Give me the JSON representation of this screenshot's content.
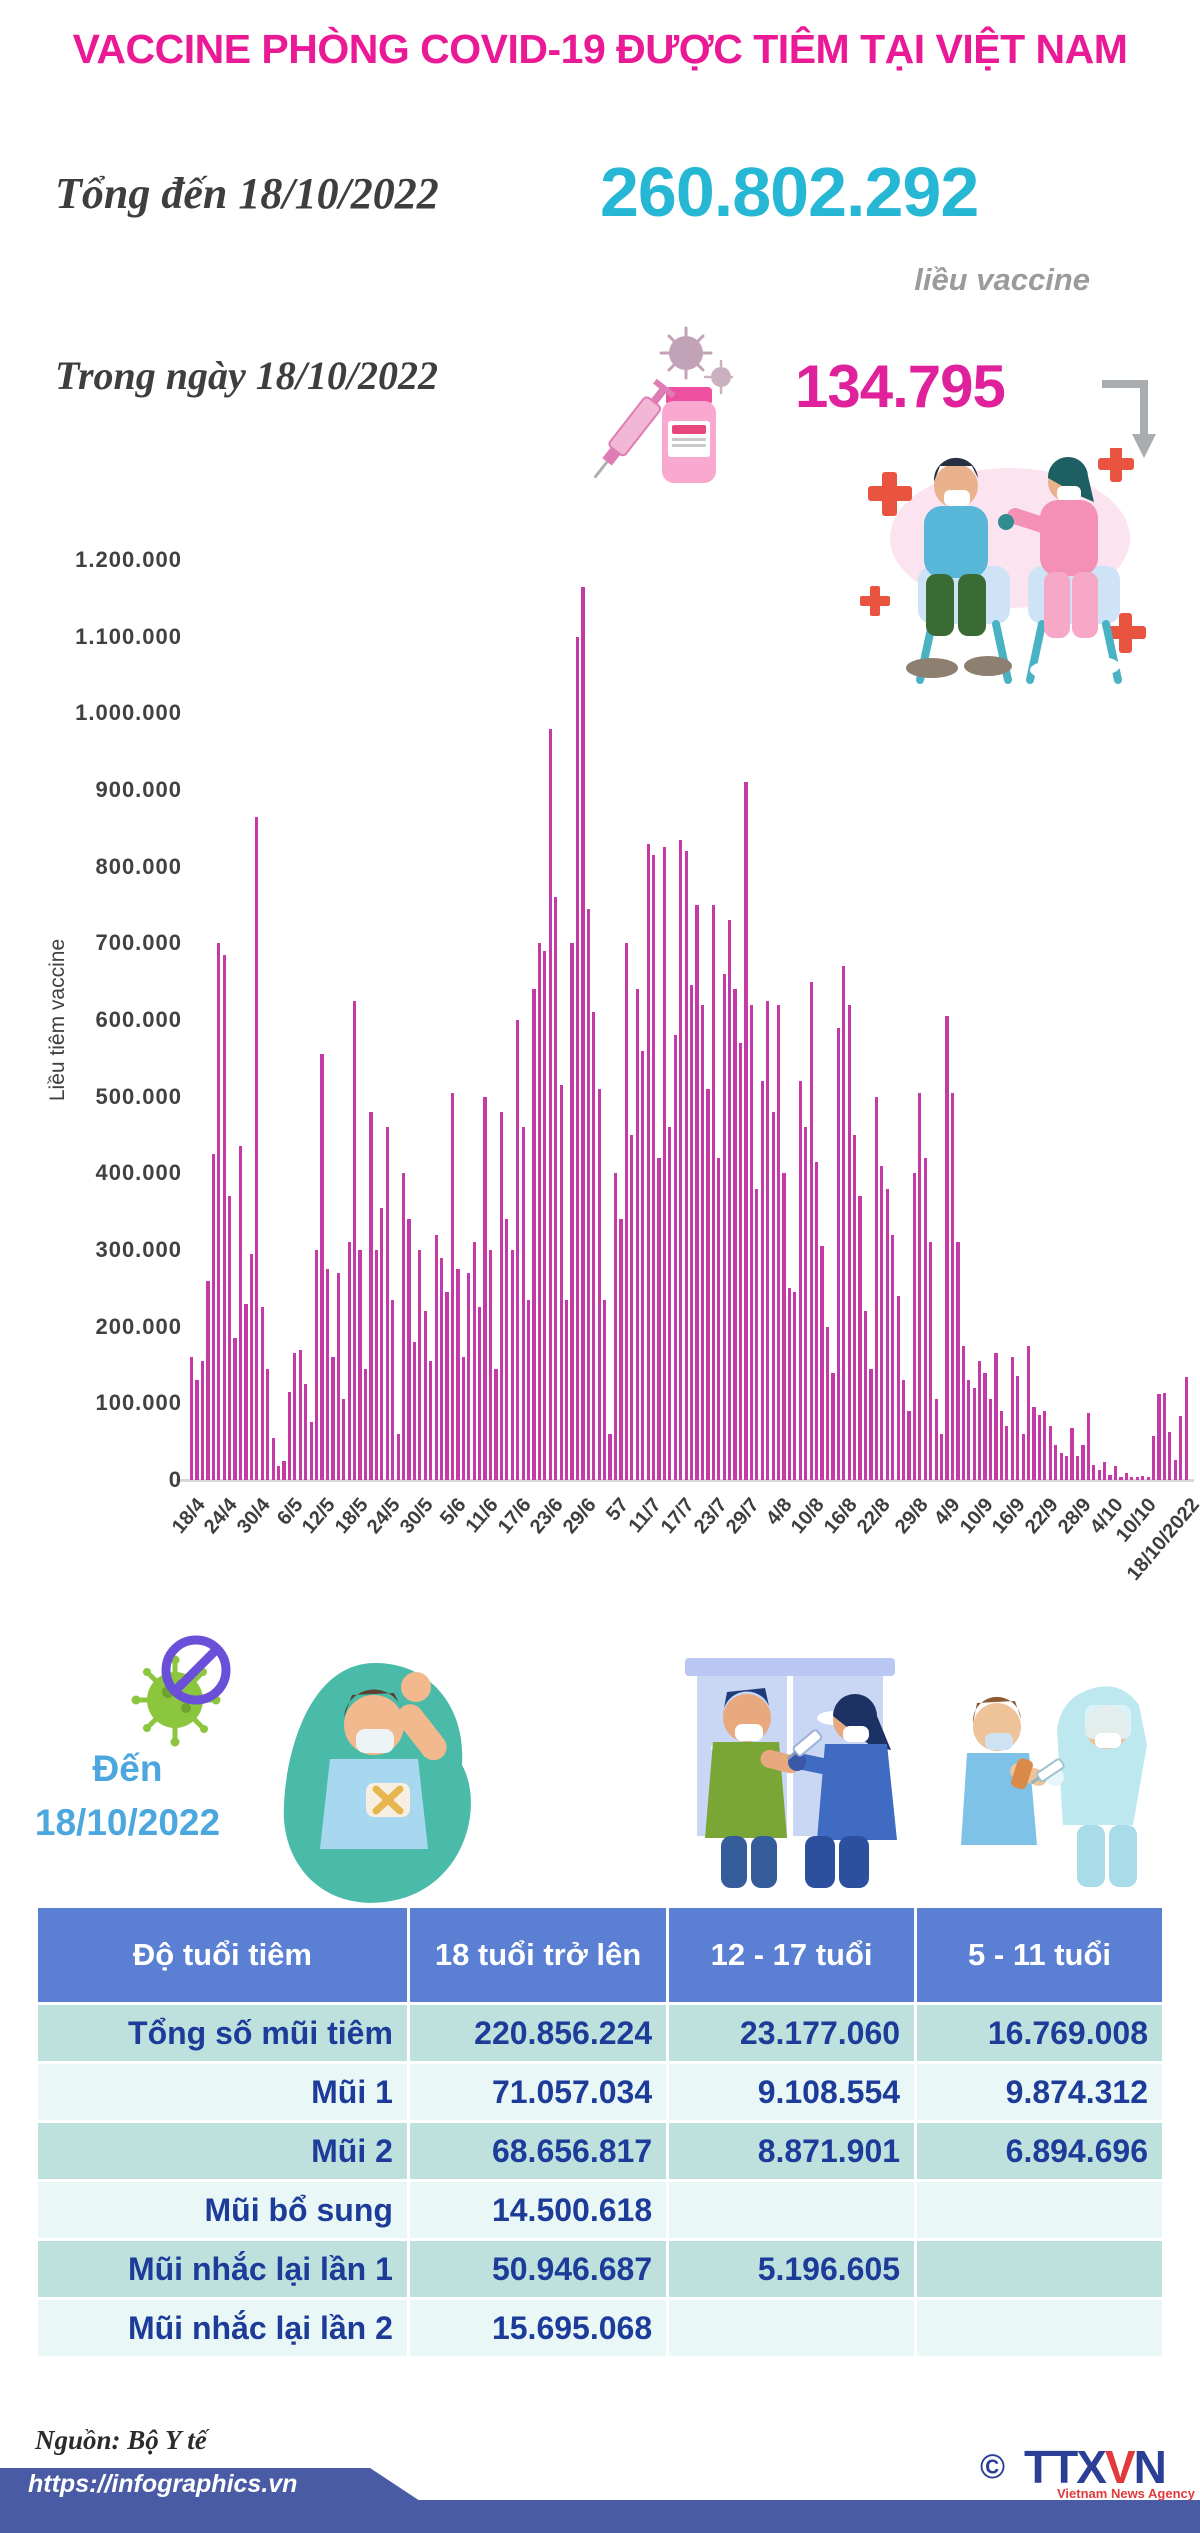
{
  "page": {
    "title": "VACCINE PHÒNG COVID-19 ĐƯỢC TIÊM TẠI VIỆT NAM"
  },
  "totals": {
    "total_label": "Tổng đến 18/10/2022",
    "total_value": "260.802.292",
    "total_unit": "liều vaccine",
    "daily_label": "Trong ngày 18/10/2022",
    "daily_value": "134.795"
  },
  "chart_data": {
    "type": "bar",
    "title": "",
    "xlabel": "",
    "ylabel": "Liều tiêm vaccine",
    "ylim": [
      0,
      1200000
    ],
    "ytick_step": 100000,
    "grid": false,
    "legend": "none",
    "bar_color": "#c43ba5",
    "x_labels": [
      "18/4",
      "24/4",
      "30/4",
      "6/5",
      "12/5",
      "18/5",
      "24/5",
      "30/5",
      "5/6",
      "11/6",
      "17/6",
      "23/6",
      "29/6",
      "57",
      "11/7",
      "17/7",
      "23/7",
      "29/7",
      "4/8",
      "10/8",
      "16/8",
      "22/8",
      "29/8",
      "4/9",
      "10/9",
      "16/9",
      "22/9",
      "28/9",
      "4/10",
      "10/10",
      "18/10/2022"
    ],
    "x_label_indices": [
      0,
      6,
      12,
      18,
      24,
      30,
      36,
      42,
      48,
      54,
      60,
      66,
      72,
      78,
      84,
      90,
      96,
      102,
      108,
      114,
      120,
      126,
      133,
      139,
      145,
      151,
      157,
      163,
      169,
      175,
      183
    ],
    "x_start_date": "18/4/2022",
    "x_end_date": "18/10/2022",
    "values": [
      160000,
      130000,
      155000,
      260000,
      425000,
      700000,
      685000,
      370000,
      185000,
      435000,
      230000,
      295000,
      865000,
      225000,
      145000,
      55000,
      18000,
      25000,
      115000,
      165000,
      170000,
      125000,
      75000,
      300000,
      555000,
      275000,
      160000,
      270000,
      105000,
      310000,
      625000,
      300000,
      145000,
      480000,
      300000,
      355000,
      460000,
      235000,
      60000,
      400000,
      340000,
      180000,
      300000,
      220000,
      155000,
      320000,
      290000,
      245000,
      505000,
      275000,
      160000,
      270000,
      310000,
      225000,
      500000,
      300000,
      145000,
      480000,
      340000,
      300000,
      600000,
      460000,
      235000,
      640000,
      700000,
      690000,
      980000,
      760000,
      515000,
      235000,
      700000,
      1100000,
      1165000,
      745000,
      610000,
      510000,
      235000,
      60000,
      400000,
      340000,
      700000,
      450000,
      640000,
      560000,
      830000,
      815000,
      420000,
      825000,
      460000,
      580000,
      835000,
      820000,
      645000,
      750000,
      620000,
      510000,
      750000,
      420000,
      660000,
      730000,
      640000,
      570000,
      910000,
      620000,
      380000,
      520000,
      625000,
      480000,
      620000,
      400000,
      250000,
      245000,
      520000,
      460000,
      650000,
      415000,
      305000,
      200000,
      140000,
      590000,
      670000,
      620000,
      450000,
      370000,
      220000,
      145000,
      500000,
      410000,
      380000,
      320000,
      240000,
      130000,
      90000,
      400000,
      505000,
      420000,
      310000,
      105000,
      60000,
      605000,
      505000,
      310000,
      175000,
      130000,
      120000,
      155000,
      140000,
      105000,
      165000,
      90000,
      70000,
      160000,
      135000,
      60000,
      175000,
      95000,
      85000,
      90000,
      70000,
      45000,
      35000,
      31000,
      68000,
      31000,
      46000,
      88000,
      20000,
      13000,
      24000,
      7000,
      18000,
      4000,
      9000,
      4000,
      4000,
      5000,
      4000,
      57000,
      112000,
      114000,
      62000,
      26000,
      84000,
      134795
    ]
  },
  "age_section": {
    "date_line1": "Đến",
    "date_line2": "18/10/2022",
    "table": {
      "header": [
        "Độ tuổi tiêm",
        "18 tuổi trở lên",
        "12 - 17 tuổi",
        "5 - 11 tuổi"
      ],
      "rows": [
        {
          "label": "Tổng số mũi tiêm",
          "values": [
            "220.856.224",
            "23.177.060",
            "16.769.008"
          ]
        },
        {
          "label": "Mũi 1",
          "values": [
            "71.057.034",
            "9.108.554",
            "9.874.312"
          ]
        },
        {
          "label": "Mũi 2",
          "values": [
            "68.656.817",
            "8.871.901",
            "6.894.696"
          ]
        },
        {
          "label": "Mũi bổ sung",
          "values": [
            "14.500.618",
            "",
            ""
          ]
        },
        {
          "label": "Mũi nhắc lại lần 1",
          "values": [
            "50.946.687",
            "5.196.605",
            ""
          ]
        },
        {
          "label": "Mũi nhắc lại lần 2",
          "values": [
            "15.695.068",
            "",
            ""
          ]
        }
      ]
    }
  },
  "footer": {
    "source": "Nguồn: Bộ Y tế",
    "url": "https://infographics.vn",
    "copyright": "©",
    "agency_prefix": "TTX",
    "agency_v": "V",
    "agency_n": "N",
    "agency_sub": "Vietnam News Agency"
  },
  "colors": {
    "title": "#ea1a96",
    "total": "#25b7d3",
    "daily": "#e0219c",
    "bar": "#c43ba5",
    "table_header": "#5a7fd3",
    "row_teal": "#bfe1de",
    "row_light": "#e9f8f6",
    "table_text": "#1d3c99",
    "footer_bar": "#4a5ba5"
  }
}
